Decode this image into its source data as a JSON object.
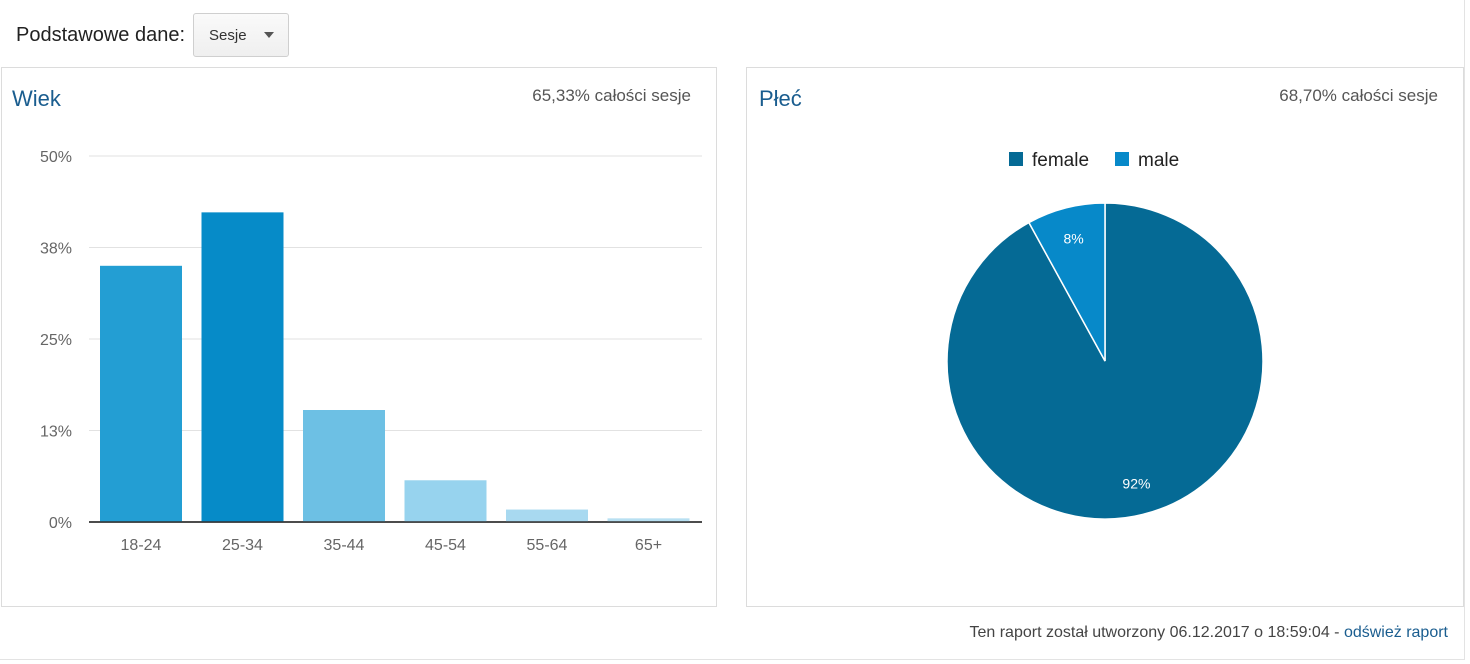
{
  "header": {
    "primary_dimension_label": "Podstawowe dane:",
    "metric_selector": {
      "value": "Sesje"
    }
  },
  "age_panel": {
    "title": "Wiek",
    "subtitle": "65,33% całości sesje"
  },
  "gender_panel": {
    "title": "Płeć",
    "subtitle": "68,70% całości sesje"
  },
  "footer": {
    "text": "Ten raport został utworzony 06.12.2017 o 18:59:04 -",
    "refresh_link": "odśwież raport"
  },
  "colors": {
    "bar_18_24": "#239ed3",
    "bar_25_34": "#068bc8",
    "bar_35_44": "#6dc0e4",
    "bar_45_54": "#97d3ee",
    "bar_55_64": "#a8d9f0",
    "bar_65_plus": "#b8e0f2",
    "female": "#056a95",
    "male": "#0789c9",
    "title": "#1a5d8f"
  },
  "chart_data": [
    {
      "type": "bar",
      "title": "Wiek",
      "categories": [
        "18-24",
        "25-34",
        "35-44",
        "45-54",
        "55-64",
        "65+"
      ],
      "values": [
        35,
        42.3,
        15.3,
        5.7,
        1.7,
        0.5
      ],
      "ylim": [
        0,
        50
      ],
      "yticks": [
        0,
        12.5,
        25,
        37.5,
        50
      ],
      "ytick_labels": [
        "0%",
        "13%",
        "25%",
        "38%",
        "50%"
      ],
      "grid": true
    },
    {
      "type": "pie",
      "title": "Płeć",
      "labels": [
        "female",
        "male"
      ],
      "values": [
        92,
        8
      ],
      "slice_labels": [
        "92%",
        "8%"
      ],
      "legend": "top"
    }
  ]
}
